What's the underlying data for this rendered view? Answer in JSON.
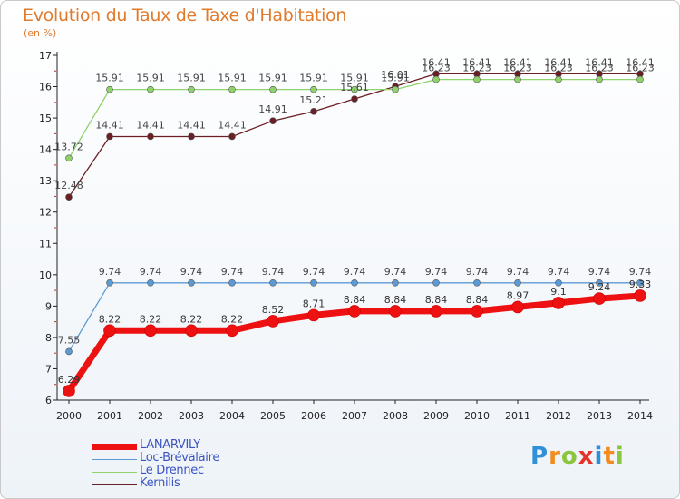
{
  "header": {
    "title": "Evolution du Taux de Taxe d'Habitation",
    "subtitle": "(en %)"
  },
  "chart_data": {
    "type": "line",
    "title": "Evolution du Taux de Taxe d'Habitation",
    "ylabel": "(en %)",
    "xlabel": "",
    "x": [
      2000,
      2001,
      2002,
      2003,
      2004,
      2005,
      2006,
      2007,
      2008,
      2009,
      2010,
      2011,
      2012,
      2013,
      2014
    ],
    "ylim": [
      6,
      17
    ],
    "yticks": [
      6,
      7,
      8,
      9,
      10,
      11,
      12,
      13,
      14,
      15,
      16,
      17
    ],
    "grid": false,
    "legend_position": "bottom-left",
    "series": [
      {
        "name": "LANARVILY",
        "color": "#ee1111",
        "values": [
          6.29,
          8.22,
          8.22,
          8.22,
          8.22,
          8.52,
          8.71,
          8.84,
          8.84,
          8.84,
          8.84,
          8.97,
          9.1,
          9.24,
          9.33
        ],
        "labels": [
          "6.29",
          "8.22",
          "8.22",
          "8.22",
          "8.22",
          "8.52",
          "8.71",
          "8.84",
          "8.84",
          "8.84",
          "8.84",
          "8.97",
          "9.1",
          "9.24",
          "9.33"
        ]
      },
      {
        "name": "Loc-Brévalaire",
        "color": "#5b9bd5",
        "values": [
          7.55,
          9.74,
          9.74,
          9.74,
          9.74,
          9.74,
          9.74,
          9.74,
          9.74,
          9.74,
          9.74,
          9.74,
          9.74,
          9.74,
          9.74
        ],
        "labels": [
          "7.55",
          "9.74",
          "9.74",
          "9.74",
          "9.74",
          "9.74",
          "9.74",
          "9.74",
          "9.74",
          "9.74",
          "9.74",
          "9.74",
          "9.74",
          "9.74",
          "9.74"
        ]
      },
      {
        "name": "Le Drennec",
        "color": "#8fd16a",
        "values": [
          13.72,
          15.91,
          15.91,
          15.91,
          15.91,
          15.91,
          15.91,
          15.91,
          15.91,
          16.23,
          16.23,
          16.23,
          16.23,
          16.23,
          16.23
        ],
        "labels": [
          "13.72",
          "15.91",
          "15.91",
          "15.91",
          "15.91",
          "15.91",
          "15.91",
          "15.91",
          "15.91",
          "16.23",
          "16.23",
          "16.23",
          "16.23",
          "16.23",
          "16.23"
        ]
      },
      {
        "name": "Kernilis",
        "color": "#6b1f25",
        "values": [
          12.48,
          14.41,
          14.41,
          14.41,
          14.41,
          14.91,
          15.21,
          15.61,
          16.01,
          16.41,
          16.41,
          16.41,
          16.41,
          16.41,
          16.41
        ],
        "labels": [
          "12.48",
          "14.41",
          "14.41",
          "14.41",
          "14.41",
          "14.91",
          "15.21",
          "15.61",
          "16.01",
          "16.41",
          "16.41",
          "16.41",
          "16.41",
          "16.41",
          "16.41"
        ]
      }
    ]
  },
  "legend": {
    "items": [
      "LANARVILY",
      "Loc-Brévalaire",
      "Le Drennec",
      "Kernilis"
    ]
  },
  "logo": {
    "text": "Proxiti",
    "letters": [
      "P",
      "r",
      "o",
      "x",
      "i",
      "t",
      "i"
    ],
    "colors": [
      "#2f8fd8",
      "#f28c1e",
      "#8cc63f",
      "#e6332a",
      "#2f8fd8",
      "#f28c1e",
      "#8cc63f"
    ]
  }
}
